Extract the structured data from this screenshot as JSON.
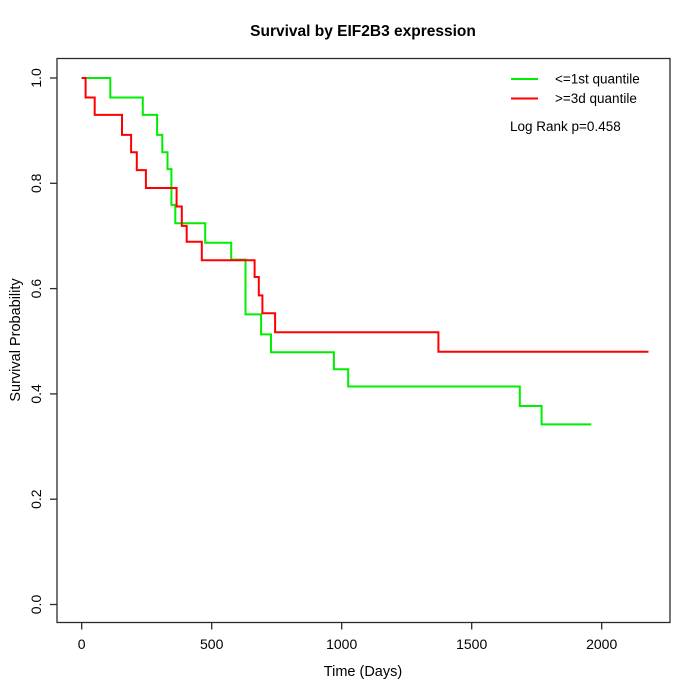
{
  "title": "Survival by EIF2B3 expression",
  "x_axis": {
    "label": "Time (Days)"
  },
  "y_axis": {
    "label": "Survival Probability"
  },
  "legend": {
    "items": [
      {
        "label": "<=1st quantile",
        "color": "#00ee00"
      },
      {
        "label": ">=3d quantile",
        "color": "#ff0000"
      }
    ],
    "note": "Log Rank p=0.458"
  },
  "chart_data": {
    "type": "line",
    "subtype": "kaplan-meier-step",
    "title": "Survival by EIF2B3 expression",
    "xlabel": "Time (Days)",
    "ylabel": "Survival Probability",
    "xlim": [
      -95,
      2263
    ],
    "ylim": [
      -0.03,
      1.04
    ],
    "x_ticks": [
      0,
      500,
      1000,
      1500,
      2000
    ],
    "y_ticks": [
      0.0,
      0.2,
      0.4,
      0.6,
      0.8,
      1.0
    ],
    "grid": false,
    "legend_position": "top-right",
    "annotation": "Log Rank p=0.458",
    "series": [
      {
        "id": "low",
        "name": "<=1st quantile",
        "color": "#00ee00",
        "start": [
          0,
          1.0
        ],
        "steps": [
          [
            110,
            0.963
          ],
          [
            235,
            0.93
          ],
          [
            290,
            0.892
          ],
          [
            310,
            0.859
          ],
          [
            330,
            0.827
          ],
          [
            345,
            0.759
          ],
          [
            360,
            0.724
          ],
          [
            475,
            0.687
          ],
          [
            575,
            0.655
          ],
          [
            630,
            0.551
          ],
          [
            690,
            0.513
          ],
          [
            728,
            0.479
          ],
          [
            970,
            0.447
          ],
          [
            1025,
            0.414
          ],
          [
            1685,
            0.377
          ],
          [
            1769,
            0.342
          ]
        ],
        "end_time": 1960
      },
      {
        "id": "high",
        "name": ">=3d quantile",
        "color": "#ff0000",
        "start": [
          0,
          1.0
        ],
        "steps": [
          [
            15,
            0.963
          ],
          [
            50,
            0.93
          ],
          [
            155,
            0.892
          ],
          [
            190,
            0.859
          ],
          [
            212,
            0.825
          ],
          [
            247,
            0.791
          ],
          [
            365,
            0.756
          ],
          [
            385,
            0.719
          ],
          [
            404,
            0.689
          ],
          [
            462,
            0.654
          ],
          [
            665,
            0.622
          ],
          [
            681,
            0.587
          ],
          [
            695,
            0.553
          ],
          [
            744,
            0.517
          ],
          [
            1372,
            0.48
          ]
        ],
        "end_time": 2180
      }
    ]
  }
}
